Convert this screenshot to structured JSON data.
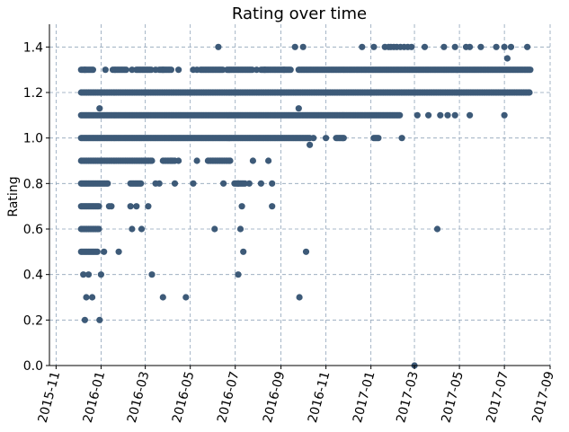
{
  "chart_data": {
    "type": "scatter",
    "title": "Rating over time",
    "xlabel": "",
    "ylabel": "Rating",
    "ylim": [
      0.0,
      1.5
    ],
    "xlim": [
      "2015-10-23",
      "2017-09-01"
    ],
    "grid": true,
    "marker_color": "#3d5a78",
    "x_ticks": [
      "2015-11",
      "2016-01",
      "2016-03",
      "2016-05",
      "2016-07",
      "2016-09",
      "2016-11",
      "2017-01",
      "2017-03",
      "2017-05",
      "2017-07",
      "2017-09"
    ],
    "y_ticks": [
      "0.0",
      "0.2",
      "0.4",
      "0.6",
      "0.8",
      "1.0",
      "1.2",
      "1.4"
    ],
    "bands": [
      {
        "y": 1.3,
        "ranges": [
          [
            "2015-12-05",
            "2015-12-22"
          ],
          [
            "2016-01-17",
            "2016-02-05"
          ],
          [
            "2016-02-18",
            "2016-03-10"
          ],
          [
            "2016-03-20",
            "2016-04-05"
          ],
          [
            "2016-05-15",
            "2016-06-15"
          ],
          [
            "2016-06-20",
            "2016-07-25"
          ],
          [
            "2016-08-05",
            "2016-09-15"
          ],
          [
            "2016-09-25",
            "2017-08-05"
          ]
        ]
      },
      {
        "y": 1.2,
        "ranges": [
          [
            "2015-12-05",
            "2017-08-05"
          ]
        ]
      },
      {
        "y": 1.1,
        "ranges": [
          [
            "2015-12-05",
            "2017-02-10"
          ]
        ]
      },
      {
        "y": 1.0,
        "ranges": [
          [
            "2015-12-05",
            "2016-10-10"
          ],
          [
            "2016-11-15",
            "2016-11-25"
          ],
          [
            "2017-01-05",
            "2017-01-12"
          ]
        ]
      },
      {
        "y": 0.9,
        "ranges": [
          [
            "2015-12-05",
            "2016-03-10"
          ],
          [
            "2016-03-25",
            "2016-04-10"
          ],
          [
            "2016-05-25",
            "2016-06-25"
          ]
        ]
      },
      {
        "y": 0.8,
        "ranges": [
          [
            "2015-12-05",
            "2016-01-10"
          ],
          [
            "2016-02-10",
            "2016-02-25"
          ],
          [
            "2016-06-30",
            "2016-07-15"
          ]
        ]
      },
      {
        "y": 0.7,
        "ranges": [
          [
            "2015-12-05",
            "2015-12-30"
          ]
        ]
      },
      {
        "y": 0.6,
        "ranges": [
          [
            "2015-12-05",
            "2015-12-30"
          ]
        ]
      },
      {
        "y": 0.5,
        "ranges": [
          [
            "2015-12-05",
            "2015-12-28"
          ]
        ]
      }
    ],
    "points": [
      [
        "2015-12-10",
        1.3
      ],
      [
        "2016-01-07",
        1.3
      ],
      [
        "2016-02-12",
        1.3
      ],
      [
        "2016-03-15",
        1.3
      ],
      [
        "2016-03-25",
        1.3
      ],
      [
        "2016-04-15",
        1.3
      ],
      [
        "2016-05-05",
        1.3
      ],
      [
        "2016-05-10",
        1.3
      ],
      [
        "2016-07-30",
        1.3
      ],
      [
        "2016-08-10",
        1.3
      ],
      [
        "2016-09-05",
        1.3
      ],
      [
        "2016-06-08",
        1.4
      ],
      [
        "2016-09-20",
        1.4
      ],
      [
        "2016-10-01",
        1.4
      ],
      [
        "2016-12-20",
        1.4
      ],
      [
        "2017-01-05",
        1.4
      ],
      [
        "2017-01-20",
        1.4
      ],
      [
        "2017-01-25",
        1.4
      ],
      [
        "2017-01-28",
        1.4
      ],
      [
        "2017-02-01",
        1.4
      ],
      [
        "2017-02-05",
        1.4
      ],
      [
        "2017-02-10",
        1.4
      ],
      [
        "2017-02-15",
        1.4
      ],
      [
        "2017-02-20",
        1.4
      ],
      [
        "2017-02-25",
        1.4
      ],
      [
        "2017-03-15",
        1.4
      ],
      [
        "2017-04-10",
        1.4
      ],
      [
        "2017-04-25",
        1.4
      ],
      [
        "2017-05-10",
        1.4
      ],
      [
        "2017-05-15",
        1.4
      ],
      [
        "2017-05-30",
        1.4
      ],
      [
        "2017-06-20",
        1.4
      ],
      [
        "2017-07-01",
        1.4
      ],
      [
        "2017-07-10",
        1.4
      ],
      [
        "2017-08-01",
        1.4
      ],
      [
        "2017-07-05",
        1.35
      ],
      [
        "2017-03-05",
        1.1
      ],
      [
        "2017-03-20",
        1.1
      ],
      [
        "2017-04-05",
        1.1
      ],
      [
        "2017-04-15",
        1.1
      ],
      [
        "2017-04-25",
        1.1
      ],
      [
        "2017-05-15",
        1.1
      ],
      [
        "2017-07-01",
        1.1
      ],
      [
        "2015-12-30",
        1.13
      ],
      [
        "2016-09-25",
        1.13
      ],
      [
        "2016-10-10",
        0.97
      ],
      [
        "2016-10-15",
        1.0
      ],
      [
        "2016-11-01",
        1.0
      ],
      [
        "2017-02-12",
        1.0
      ],
      [
        "2016-04-05",
        0.9
      ],
      [
        "2016-04-15",
        0.9
      ],
      [
        "2016-05-10",
        0.9
      ],
      [
        "2016-07-25",
        0.9
      ],
      [
        "2016-08-15",
        0.9
      ],
      [
        "2016-03-15",
        0.8
      ],
      [
        "2016-03-20",
        0.8
      ],
      [
        "2016-04-10",
        0.8
      ],
      [
        "2016-05-05",
        0.8
      ],
      [
        "2016-06-15",
        0.8
      ],
      [
        "2016-07-05",
        0.8
      ],
      [
        "2016-07-20",
        0.8
      ],
      [
        "2016-08-05",
        0.8
      ],
      [
        "2016-08-20",
        0.8
      ],
      [
        "2016-01-12",
        0.7
      ],
      [
        "2016-01-15",
        0.7
      ],
      [
        "2016-02-10",
        0.7
      ],
      [
        "2016-02-18",
        0.7
      ],
      [
        "2016-03-05",
        0.7
      ],
      [
        "2016-07-10",
        0.7
      ],
      [
        "2016-08-20",
        0.7
      ],
      [
        "2016-02-12",
        0.6
      ],
      [
        "2016-02-25",
        0.6
      ],
      [
        "2016-06-03",
        0.6
      ],
      [
        "2016-07-08",
        0.6
      ],
      [
        "2017-04-01",
        0.6
      ],
      [
        "2016-01-05",
        0.5
      ],
      [
        "2016-01-25",
        0.5
      ],
      [
        "2016-07-12",
        0.5
      ],
      [
        "2016-10-05",
        0.5
      ],
      [
        "2015-12-08",
        0.4
      ],
      [
        "2015-12-15",
        0.4
      ],
      [
        "2016-01-01",
        0.4
      ],
      [
        "2016-03-10",
        0.4
      ],
      [
        "2016-07-05",
        0.4
      ],
      [
        "2015-12-12",
        0.3
      ],
      [
        "2015-12-20",
        0.3
      ],
      [
        "2016-03-25",
        0.3
      ],
      [
        "2016-04-25",
        0.3
      ],
      [
        "2016-09-26",
        0.3
      ],
      [
        "2015-12-10",
        0.2
      ],
      [
        "2015-12-30",
        0.2
      ],
      [
        "2017-03-01",
        0.0
      ]
    ]
  }
}
